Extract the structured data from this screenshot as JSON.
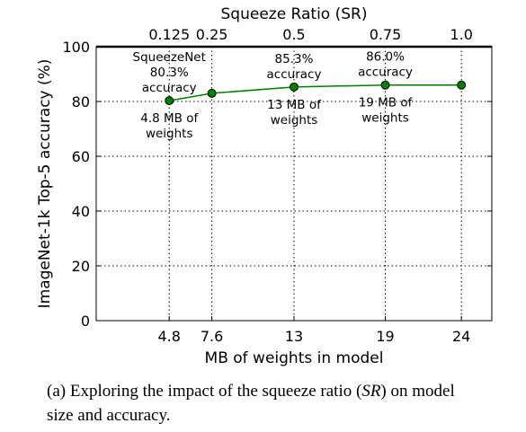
{
  "chart_data": {
    "type": "line",
    "title": "Squeeze Ratio (SR)",
    "xlabel": "MB of weights in model",
    "ylabel": "ImageNet-1k Top-5 accuracy (%)",
    "ylim": [
      0,
      100
    ],
    "xlim": [
      0,
      26
    ],
    "yticks": [
      0,
      20,
      40,
      60,
      80,
      100
    ],
    "grid": true,
    "x": [
      4.8,
      7.6,
      13,
      19,
      24
    ],
    "x_tick_labels": [
      "4.8",
      "7.6",
      "13",
      "19",
      "24"
    ],
    "top_tick_labels": [
      "0.125",
      "0.25",
      "0.5",
      "0.75",
      "1.0"
    ],
    "series": [
      {
        "values": [
          80.3,
          83.0,
          85.3,
          86.0,
          86.0
        ],
        "color": "#008000"
      }
    ],
    "annotations": [
      {
        "x": 4.8,
        "position": "above",
        "lines": [
          "SqueezeNet",
          "80.3%",
          "accuracy"
        ]
      },
      {
        "x": 4.8,
        "position": "below",
        "lines": [
          "4.8 MB of",
          "weights"
        ]
      },
      {
        "x": 13,
        "position": "above",
        "lines": [
          "85.3%",
          "accuracy"
        ]
      },
      {
        "x": 13,
        "position": "below",
        "lines": [
          "13 MB of",
          "weights"
        ]
      },
      {
        "x": 19,
        "position": "above",
        "lines": [
          "86.0%",
          "accuracy"
        ]
      },
      {
        "x": 19,
        "position": "below",
        "lines": [
          "19 MB of",
          "weights"
        ]
      }
    ]
  },
  "caption": {
    "line1_prefix": "(a)  Exploring the impact of the squeeze ratio (",
    "line1_sr": "SR",
    "line1_suffix": ") on model",
    "line2": "size and accuracy."
  }
}
